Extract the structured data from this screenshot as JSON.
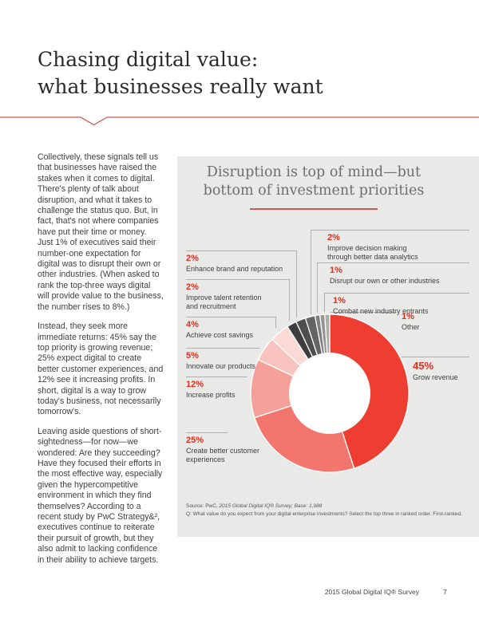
{
  "page": {
    "title_line1": "Chasing digital value:",
    "title_line2": "what businesses really want",
    "footer_text": "2015 Global Digital IQ® Survey",
    "page_number": "7"
  },
  "body": {
    "paragraph1": "Collectively, these signals tell us that businesses have raised the stakes when it comes to digital. There's plenty of talk about disruption, and what it takes to challenge the status quo. But, in fact, that's not where companies have put their time or money. Just 1% of executives said their number-one expectation for digital was to disrupt their own or other industries. (When asked to rank the top-three ways digital will provide value to the business, the number rises to 8%.)",
    "paragraph2": "Instead, they seek more immediate returns: 45% say the top priority is growing revenue; 25% expect digital to create better customer experiences, and 12% see it increasing profits. In short, digital is a way to grow today's business, not necessarily tomorrow's.",
    "paragraph3": "Leaving aside questions of short-sightedness—for now—we wondered: Are they succeeding? Have they focused their efforts in the most effective way, especially given the hypercompetitive environment in which they find themselves? According to a recent study by PwC Strategy&², executives continue to reiterate their pursuit of growth, but they also admit to lacking confidence in their ability to achieve targets."
  },
  "chart": {
    "title_line1": "Disruption is top of mind—but",
    "title_line2": "bottom of investment priorities",
    "source_prefix": "Source: PwC, ",
    "source_italic": "2015 Global Digital IQ® Survey; Base: 1,988",
    "source_q": "Q: What value do you expect from your digital enterprise investments? Select the top three in ranked order. First-ranked.",
    "labels": [
      {
        "pct": "2%",
        "text": "Enhance brand and reputation"
      },
      {
        "pct": "2%",
        "text": "Improve talent retention and recruitment"
      },
      {
        "pct": "4%",
        "text": "Achieve cost savings"
      },
      {
        "pct": "5%",
        "text": "Innovate our products"
      },
      {
        "pct": "12%",
        "text": "Increase profits"
      },
      {
        "pct": "25%",
        "text": "Create better customer experiences"
      },
      {
        "pct": "2%",
        "text": "Improve decision making through better data analytics"
      },
      {
        "pct": "1%",
        "text": "Disrupt our own or other industries"
      },
      {
        "pct": "1%",
        "text": "Combat new industry entrants"
      },
      {
        "pct": "1%",
        "text": "Other"
      },
      {
        "pct": "45%",
        "text": "Grow revenue"
      }
    ]
  },
  "chart_data": {
    "type": "pie",
    "donut": true,
    "title": "Disruption is top of mind—but bottom of investment priorities",
    "categories": [
      "Grow revenue",
      "Create better customer experiences",
      "Increase profits",
      "Innovate our products",
      "Achieve cost savings",
      "Improve talent retention and recruitment",
      "Enhance brand and reputation",
      "Improve decision making through better data analytics",
      "Disrupt our own or other industries",
      "Combat new industry entrants",
      "Other"
    ],
    "values": [
      45,
      25,
      12,
      5,
      4,
      2,
      2,
      2,
      1,
      1,
      1
    ],
    "colors": [
      "#ee3e31",
      "#f3766e",
      "#f6a09a",
      "#f9c4bf",
      "#fbdad6",
      "#3d3d3d",
      "#4e4e4e",
      "#646464",
      "#7e7e7e",
      "#959595",
      "#adadad"
    ],
    "start_angle_deg": 0,
    "direction": "clockwise",
    "inner_radius_ratio": 0.52,
    "legend_position": "callouts",
    "accent_color": "#e0301e",
    "panel_background": "#e9e9e8"
  }
}
